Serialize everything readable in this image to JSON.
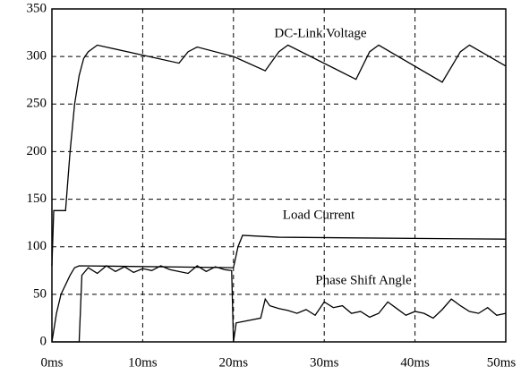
{
  "chart_data": {
    "type": "line",
    "annotations": [
      "DC-Link Voltage",
      "Load Current",
      "Phase Shift Angle"
    ],
    "xlim": [
      0,
      50
    ],
    "xticks": [
      {
        "value": 0,
        "label": "0ms"
      },
      {
        "value": 10,
        "label": "10ms"
      },
      {
        "value": 20,
        "label": "20ms"
      },
      {
        "value": 30,
        "label": "30ms"
      },
      {
        "value": 40,
        "label": "40ms"
      },
      {
        "value": 50,
        "label": "50ms"
      }
    ],
    "ylim": [
      0,
      350
    ],
    "yticks": [
      0,
      50,
      100,
      150,
      200,
      250,
      300,
      350
    ],
    "grid": true,
    "series": [
      {
        "color": "#000000",
        "x": [
          0,
          0.2,
          1.5,
          2,
          2.5,
          3,
          3.5,
          4,
          5,
          14,
          15,
          16,
          20,
          23.5,
          25,
          26,
          33.5,
          35,
          36,
          43,
          45,
          46,
          50
        ],
        "values": [
          80,
          138,
          138,
          200,
          250,
          280,
          298,
          305,
          312,
          293,
          305,
          310,
          300,
          285,
          305,
          312,
          276,
          305,
          312,
          273,
          305,
          312,
          290
        ]
      },
      {
        "color": "#000000",
        "x": [
          0,
          0.5,
          1,
          2,
          2.5,
          3,
          20,
          20.5,
          21,
          25,
          50
        ],
        "values": [
          0,
          30,
          50,
          70,
          78,
          80,
          78,
          100,
          112,
          110,
          108
        ]
      },
      {
        "color": "#000000",
        "x": [
          0,
          3,
          3.3,
          4,
          5,
          6,
          7,
          8,
          9,
          10,
          11,
          12,
          13,
          14,
          15,
          16,
          17,
          18,
          19,
          19.8,
          20,
          20.3,
          23,
          23.5,
          24,
          25,
          26,
          27,
          28,
          29,
          30,
          31,
          32,
          33,
          34,
          35,
          36,
          37,
          38,
          39,
          40,
          41,
          42,
          43,
          44,
          45,
          46,
          47,
          48,
          49,
          50
        ],
        "values": [
          0,
          0,
          70,
          78,
          72,
          80,
          74,
          79,
          73,
          77,
          75,
          80,
          76,
          74,
          72,
          80,
          74,
          79,
          76,
          75,
          0,
          20,
          25,
          45,
          38,
          35,
          33,
          30,
          34,
          28,
          42,
          36,
          38,
          30,
          32,
          26,
          30,
          42,
          35,
          28,
          32,
          30,
          25,
          34,
          45,
          38,
          32,
          30,
          36,
          28,
          30
        ]
      }
    ]
  }
}
